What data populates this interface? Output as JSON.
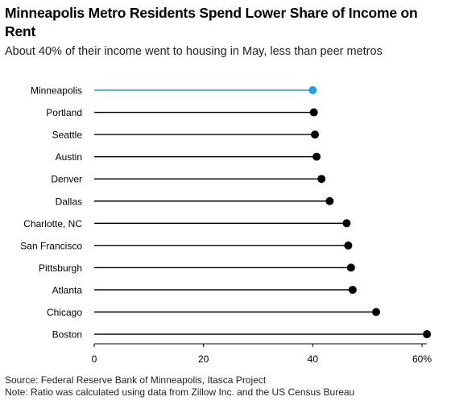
{
  "title": "Minneapolis Metro Residents Spend Lower Share of Income on Rent",
  "subtitle": "About 40% of their income went to housing in May, less than peer metros",
  "source": "Source: Federal Reserve Bank of Minneapolis, Itasca Project",
  "note": "Note: Ratio was calculated using data from Zillow Inc. and the US Census Bureau",
  "colors": {
    "highlight": "#1da1e5",
    "default": "#000000",
    "axis": "#000000"
  },
  "chart_data": {
    "type": "lollipop",
    "categories": [
      "Minneapolis",
      "Portland",
      "Seattle",
      "Austin",
      "Denver",
      "Dallas",
      "Charlotte, NC",
      "San Francisco",
      "Pittsburgh",
      "Atlanta",
      "Chicago",
      "Boston"
    ],
    "values": [
      40.0,
      40.2,
      40.4,
      40.7,
      41.6,
      43.1,
      46.2,
      46.5,
      47.0,
      47.3,
      51.6,
      60.9
    ],
    "highlight": "Minneapolis",
    "xlim": [
      0,
      61
    ],
    "xticks": [
      0,
      20,
      40,
      60
    ],
    "xtick_labels": [
      "0",
      "20",
      "40",
      "60%"
    ],
    "grid": false
  }
}
